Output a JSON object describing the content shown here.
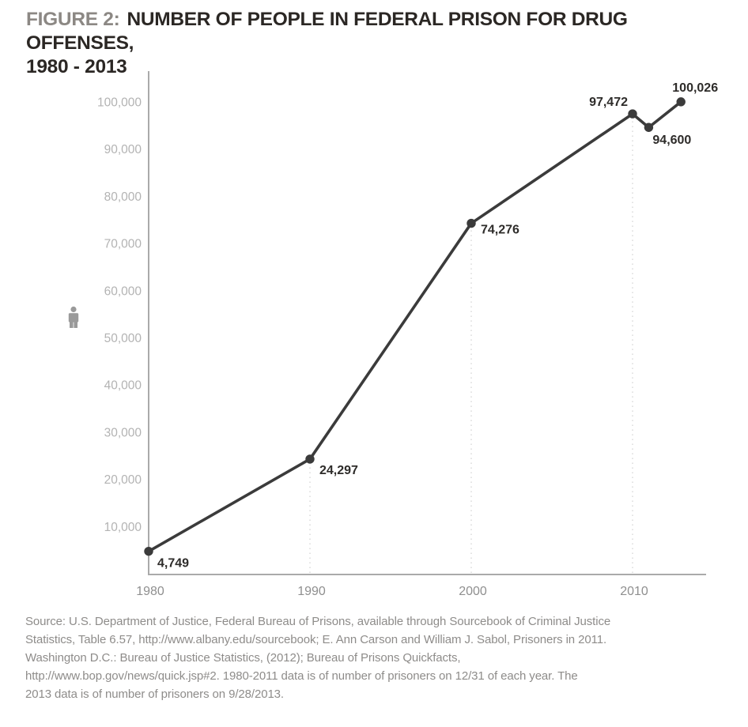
{
  "title": {
    "figure_label": "FIGURE 2:",
    "text": "NUMBER OF PEOPLE IN FEDERAL PRISON FOR DRUG OFFENSES,",
    "line2": "1980 - 2013"
  },
  "chart_data": {
    "type": "line",
    "title": "FIGURE 2: NUMBER OF PEOPLE IN FEDERAL PRISON FOR DRUG OFFENSES, 1980 - 2013",
    "x": [
      1980,
      1990,
      2000,
      2010,
      2011,
      2013
    ],
    "values": [
      4749,
      24297,
      74276,
      97472,
      94600,
      100026
    ],
    "point_labels": [
      "4,749",
      "24,297",
      "74,276",
      "97,472",
      "94,600",
      "100,026"
    ],
    "x_tick_years": [
      1980,
      1990,
      2000,
      2010
    ],
    "x_ticks": [
      "1980",
      "1990",
      "2000",
      "2010"
    ],
    "y_tick_values": [
      10000,
      20000,
      30000,
      40000,
      50000,
      60000,
      70000,
      80000,
      90000,
      100000
    ],
    "y_ticks": [
      "10,000",
      "20,000",
      "30,000",
      "40,000",
      "50,000",
      "60,000",
      "70,000",
      "80,000",
      "90,000",
      "100,000"
    ],
    "xlim": [
      1980,
      2014.5
    ],
    "ylim": [
      0,
      106000
    ],
    "xlabel": "",
    "ylabel": "",
    "legend": "none",
    "grid": "dotted vertical lines at 1990, 2000, 2010 up to data line"
  },
  "colors": {
    "line": "#3b3b3b",
    "point": "#3b3b3b",
    "axis": "#aaaaaa",
    "gridline": "#dcdcdc",
    "y_tick_text": "#b3b3b3",
    "x_tick_text": "#8f8f8f",
    "point_label_text": "#2e2c2a",
    "title_dark": "#2b2724",
    "figure_label_gray": "#8c8884",
    "source_text": "#8e8c8a",
    "person_icon": "#9a9a9a",
    "background": "#ffffff"
  },
  "icons": {
    "person": "person-icon"
  },
  "source_lines": [
    "Source: U.S. Department of Justice, Federal Bureau of Prisons, available through Sourcebook of Criminal Justice",
    "Statistics, Table 6.57, http://www.albany.edu/sourcebook; E. Ann Carson and William J. Sabol, Prisoners in 2011.",
    "Washington D.C.: Bureau of Justice Statistics, (2012); Bureau of Prisons Quickfacts,",
    "http://www.bop.gov/news/quick.jsp#2. 1980-2011 data is of number of prisoners on 12/31 of each year. The",
    "2013 data is of number of prisoners on 9/28/2013."
  ]
}
